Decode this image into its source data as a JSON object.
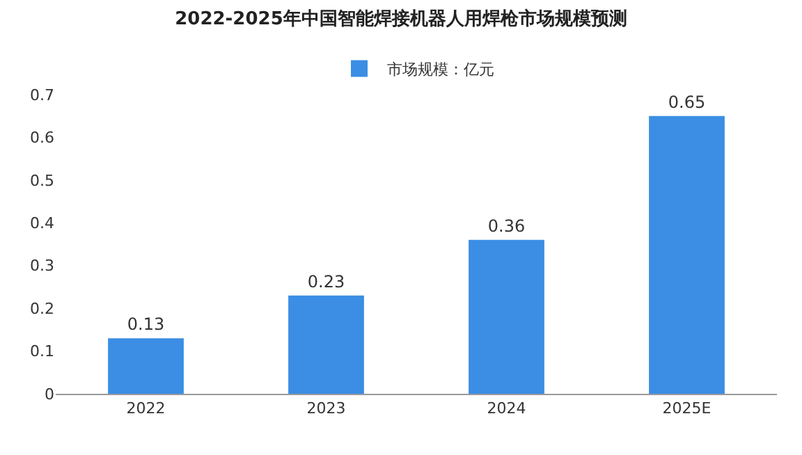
{
  "chart_data": {
    "type": "bar",
    "title": "2022-2025年中国智能焊接机器人用焊枪市场规模预测",
    "categories": [
      "2022",
      "2023",
      "2024",
      "2025E"
    ],
    "series": [
      {
        "name": "市场规模：亿元",
        "color": "#3b8ee4",
        "values": [
          0.13,
          0.23,
          0.36,
          0.65
        ]
      }
    ],
    "ylim": [
      0,
      0.7
    ],
    "yticks": [
      0,
      0.1,
      0.2,
      0.3,
      0.4,
      0.5,
      0.6,
      0.7
    ],
    "grid": false,
    "legend": "top",
    "data_labels": true
  }
}
